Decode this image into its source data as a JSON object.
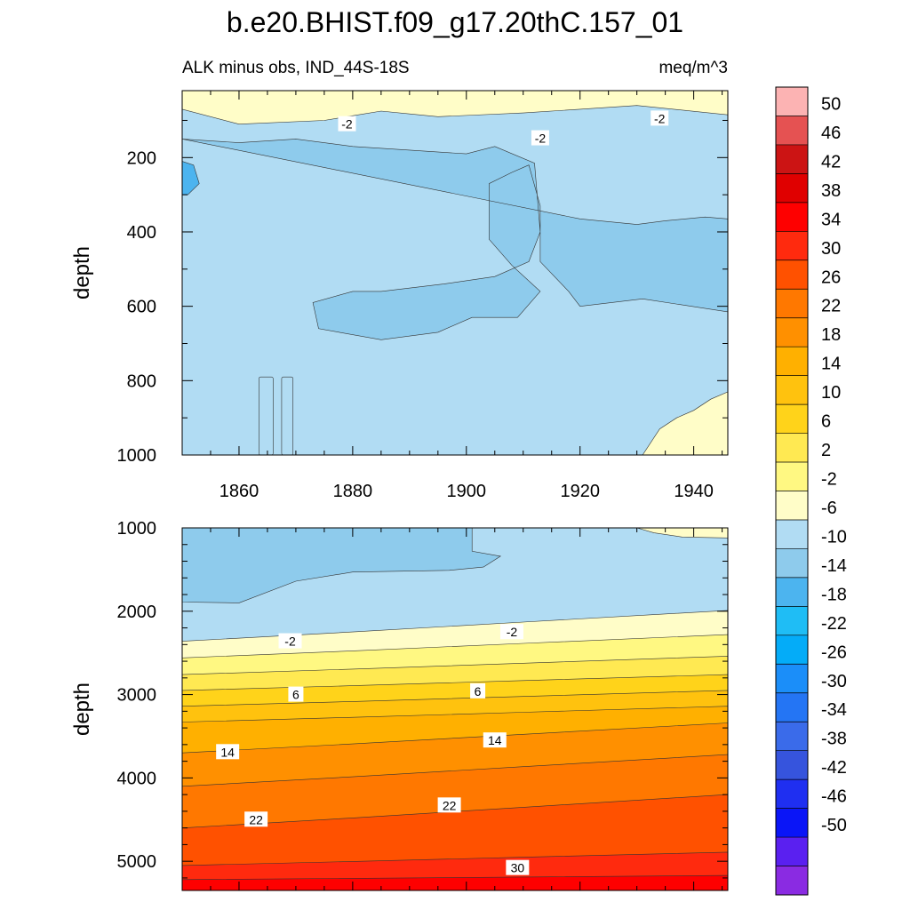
{
  "title": "b.e20.BHIST.f09_g17.20thC.157_01",
  "chart_data": [
    {
      "type": "heatmap",
      "panel": "upper",
      "title_left": "ALK minus obs, IND_44S-18S",
      "title_right": "meq/m^3",
      "ylabel": "depth",
      "xlim": [
        1850,
        1946
      ],
      "ylim": [
        1000,
        20
      ],
      "y_reversed": true,
      "xticks": [
        "1860",
        "1880",
        "1900",
        "1920",
        "1940"
      ],
      "yticks": [
        "200",
        "400",
        "600",
        "800",
        "1000"
      ],
      "regions": [
        {
          "color": "#b1dcf3",
          "description": "background -6 to -2",
          "level": -4
        },
        {
          "color": "#fffdc8",
          "level": 0,
          "points": [
            [
              1850,
              20
            ],
            [
              1946,
              20
            ],
            [
              1946,
              85
            ],
            [
              1930,
              60
            ],
            [
              1920,
              70
            ],
            [
              1910,
              80
            ],
            [
              1895,
              90
            ],
            [
              1885,
              75
            ],
            [
              1875,
              100
            ],
            [
              1860,
              110
            ],
            [
              1850,
              70
            ]
          ]
        },
        {
          "color": "#8ecbec",
          "level": -8,
          "points": [
            [
              1850,
              150
            ],
            [
              1860,
              160
            ],
            [
              1870,
              150
            ],
            [
              1880,
              170
            ],
            [
              1890,
              180
            ],
            [
              1900,
              190
            ],
            [
              1905,
              170
            ],
            [
              1912,
              215
            ],
            [
              1913,
              400
            ],
            [
              1911,
              480
            ],
            [
              1905,
              520
            ],
            [
              1896,
              540
            ],
            [
              1885,
              560
            ],
            [
              1880,
              560
            ],
            [
              1873,
              590
            ],
            [
              1874,
              660
            ],
            [
              1885,
              690
            ],
            [
              1895,
              670
            ],
            [
              1901,
              630
            ],
            [
              1909,
              630
            ],
            [
              1913,
              560
            ],
            [
              1908,
              490
            ],
            [
              1904,
              420
            ],
            [
              1904,
              270
            ],
            [
              1908,
              240
            ],
            [
              1911,
              220
            ],
            [
              1913,
              330
            ],
            [
              1913,
              480
            ],
            [
              1918,
              560
            ],
            [
              1920,
              600
            ],
            [
              1931,
              580
            ],
            [
              1946,
              615
            ],
            [
              1946,
              365
            ],
            [
              1942,
              360
            ],
            [
              1935,
              370
            ],
            [
              1930,
              380
            ],
            [
              1920,
              365
            ]
          ]
        },
        {
          "color": "#4cb4ef",
          "level": -12,
          "points": [
            [
              1850,
              210
            ],
            [
              1852,
              220
            ],
            [
              1853,
              270
            ],
            [
              1851,
              300
            ],
            [
              1850,
              300
            ]
          ]
        }
      ],
      "contour_labels": [
        {
          "text": "-2",
          "x": 1879,
          "y": 110
        },
        {
          "text": "-2",
          "x": 1913,
          "y": 148
        },
        {
          "text": "-2",
          "x": 1934,
          "y": 95
        }
      ]
    },
    {
      "type": "heatmap",
      "panel": "lower",
      "ylabel": "depth",
      "xlim": [
        1850,
        1946
      ],
      "ylim": [
        5350,
        1000
      ],
      "y_reversed": true,
      "yticks": [
        "1000",
        "2000",
        "3000",
        "4000",
        "5000"
      ],
      "contour_labels": [
        {
          "text": "-2",
          "x": 1869,
          "y": 2360
        },
        {
          "text": "-2",
          "x": 1908,
          "y": 2250
        },
        {
          "text": "6",
          "x": 1870,
          "y": 3000
        },
        {
          "text": "6",
          "x": 1902,
          "y": 2960
        },
        {
          "text": "14",
          "x": 1858,
          "y": 3690
        },
        {
          "text": "14",
          "x": 1905,
          "y": 3550
        },
        {
          "text": "22",
          "x": 1863,
          "y": 4500
        },
        {
          "text": "22",
          "x": 1897,
          "y": 4330
        },
        {
          "text": "30",
          "x": 1909,
          "y": 5080
        }
      ]
    }
  ],
  "colorbar": {
    "labels": [
      "50",
      "46",
      "42",
      "38",
      "34",
      "30",
      "26",
      "22",
      "18",
      "14",
      "10",
      "6",
      "2",
      "-2",
      "-6",
      "-10",
      "-14",
      "-18",
      "-22",
      "-26",
      "-30",
      "-34",
      "-38",
      "-42",
      "-46",
      "-50"
    ],
    "colors": [
      "#fcb3b3",
      "#e55252",
      "#cc1414",
      "#e00000",
      "#fe0000",
      "#ff2a0e",
      "#ff5100",
      "#ff7800",
      "#ff9000",
      "#ffb000",
      "#ffc20e",
      "#ffd31a",
      "#ffe952",
      "#fff882",
      "#fffdc8",
      "#b1dcf3",
      "#8ecbec",
      "#4cb4ef",
      "#1fbdf5",
      "#04acf8",
      "#1b8ef9",
      "#2475f4",
      "#3a6bea",
      "#3654dd",
      "#1f2ff1",
      "#0a15f7",
      "#5a20f0",
      "#8a2be2"
    ]
  }
}
